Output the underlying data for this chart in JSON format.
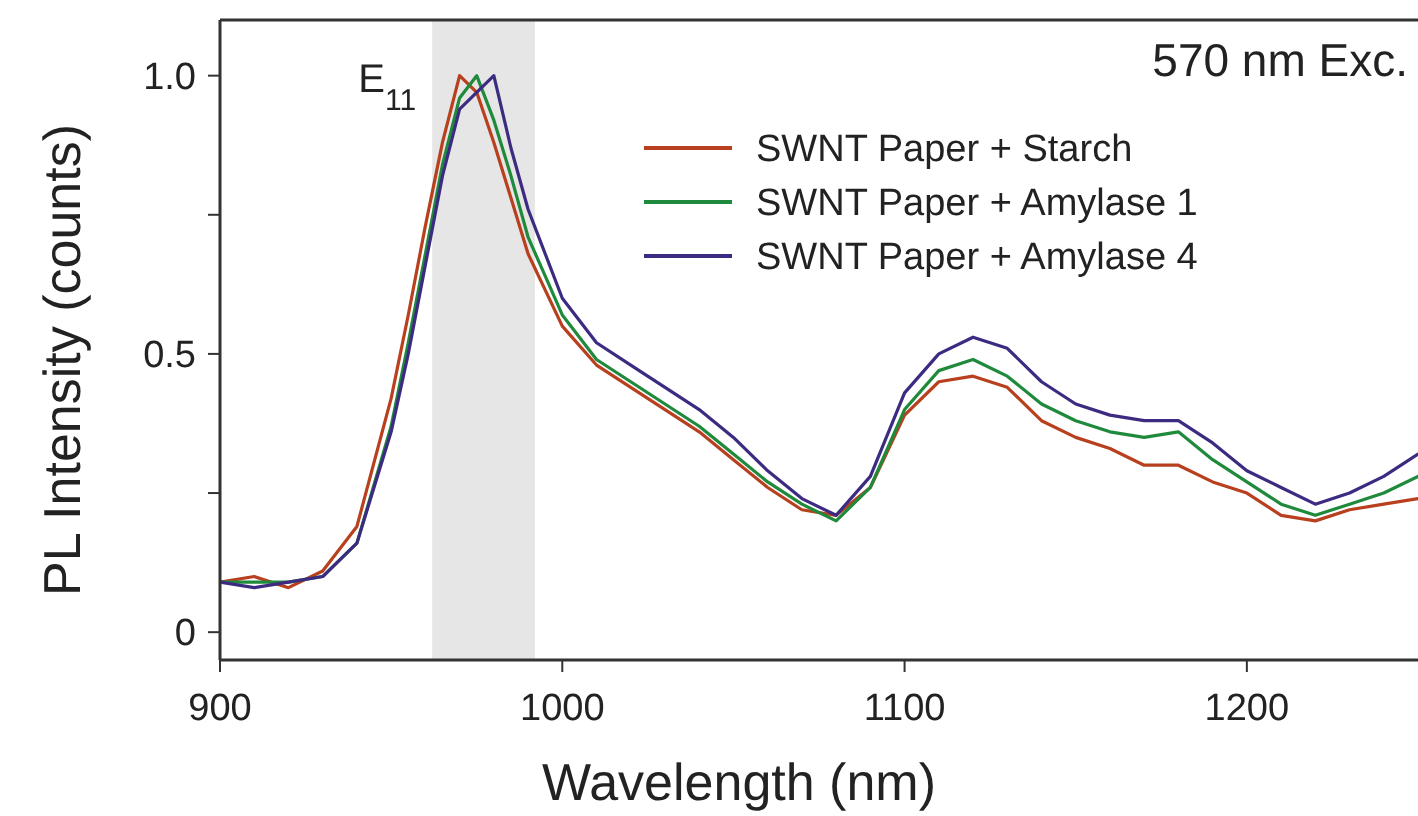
{
  "chart_data": {
    "type": "line",
    "xlabel": "Wavelength (nm)",
    "ylabel": "PL Intensity (counts)",
    "annotations": [
      "570 nm Exc."
    ],
    "x": [
      900,
      910,
      920,
      930,
      940,
      950,
      955,
      960,
      965,
      970,
      975,
      980,
      985,
      990,
      1000,
      1010,
      1020,
      1030,
      1040,
      1050,
      1060,
      1070,
      1080,
      1090,
      1100,
      1110,
      1120,
      1130,
      1140,
      1150,
      1160,
      1170,
      1180,
      1190,
      1200,
      1210,
      1220,
      1230,
      1240,
      1250
    ],
    "series": [
      {
        "name": "SWNT Paper + Starch",
        "color": "#b8401f",
        "values": [
          0.09,
          0.1,
          0.08,
          0.11,
          0.19,
          0.42,
          0.57,
          0.73,
          0.88,
          1.0,
          0.97,
          0.88,
          0.78,
          0.68,
          0.55,
          0.48,
          0.44,
          0.4,
          0.36,
          0.31,
          0.26,
          0.22,
          0.21,
          0.26,
          0.39,
          0.45,
          0.46,
          0.44,
          0.38,
          0.35,
          0.33,
          0.3,
          0.3,
          0.27,
          0.25,
          0.21,
          0.2,
          0.22,
          0.23,
          0.24
        ]
      },
      {
        "name": "SWNT Paper + Amylase 1",
        "color": "#1f8a3c",
        "values": [
          0.09,
          0.09,
          0.09,
          0.1,
          0.16,
          0.37,
          0.52,
          0.68,
          0.84,
          0.96,
          1.0,
          0.92,
          0.82,
          0.71,
          0.57,
          0.49,
          0.45,
          0.41,
          0.37,
          0.32,
          0.27,
          0.23,
          0.2,
          0.26,
          0.4,
          0.47,
          0.49,
          0.46,
          0.41,
          0.38,
          0.36,
          0.35,
          0.36,
          0.31,
          0.27,
          0.23,
          0.21,
          0.23,
          0.25,
          0.28
        ]
      },
      {
        "name": "SWNT Paper + Amylase 4",
        "color": "#3d2b82",
        "values": [
          0.09,
          0.08,
          0.09,
          0.1,
          0.16,
          0.36,
          0.5,
          0.66,
          0.82,
          0.94,
          0.97,
          1.0,
          0.87,
          0.76,
          0.6,
          0.52,
          0.48,
          0.44,
          0.4,
          0.35,
          0.29,
          0.24,
          0.21,
          0.28,
          0.43,
          0.5,
          0.53,
          0.51,
          0.45,
          0.41,
          0.39,
          0.38,
          0.38,
          0.34,
          0.29,
          0.26,
          0.23,
          0.25,
          0.28,
          0.32
        ]
      }
    ],
    "bands": [
      {
        "axis": "x",
        "from": 962,
        "to": 992,
        "label": "E$_{11}$",
        "color": "#e6e6e6"
      }
    ],
    "xlim": [
      900,
      1250
    ],
    "xticks": [
      900,
      1000,
      1100,
      1200
    ],
    "ylim": [
      -0.05,
      1.1
    ],
    "yticks": [
      0,
      {
        "value": 0.25,
        "label": null
      },
      0.5,
      {
        "value": 0.75,
        "label": null
      },
      {
        "value": 1.0,
        "label": "1.0"
      }
    ],
    "grid": false,
    "legend": "top right",
    "line_style": "solid",
    "marker": "none"
  }
}
